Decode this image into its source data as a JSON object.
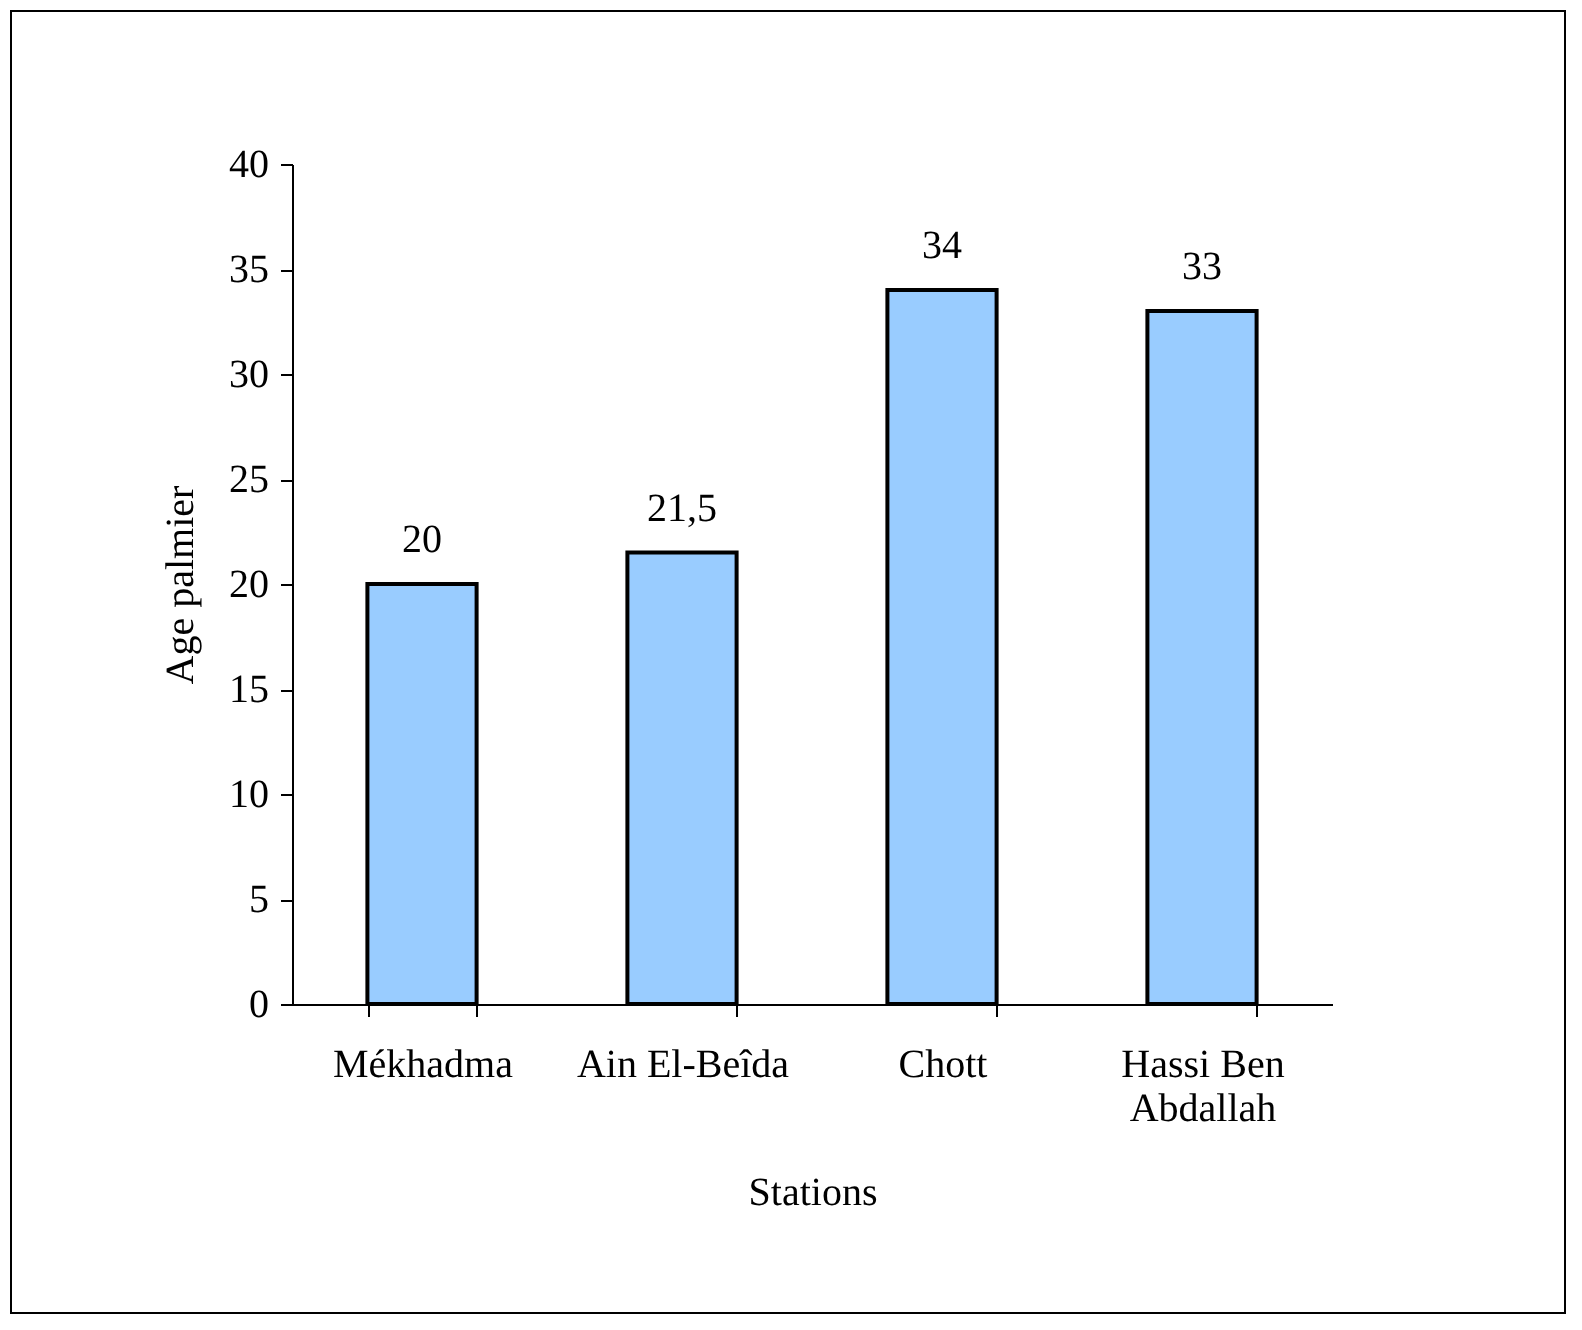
{
  "chart_data": {
    "type": "bar",
    "xlabel": "Stations",
    "ylabel": "Age palmier",
    "categories": [
      "Mékhadma",
      "Ain El-Beîda",
      "Chott",
      "Hassi Ben Abdallah"
    ],
    "values": [
      20,
      21.5,
      34,
      33
    ],
    "value_labels": [
      "20",
      "21,5",
      "34",
      "33"
    ],
    "color": "#99ccff",
    "ylim": [
      0,
      40
    ],
    "yticks": [
      0,
      5,
      10,
      15,
      20,
      25,
      30,
      35,
      40
    ],
    "grid": false
  }
}
